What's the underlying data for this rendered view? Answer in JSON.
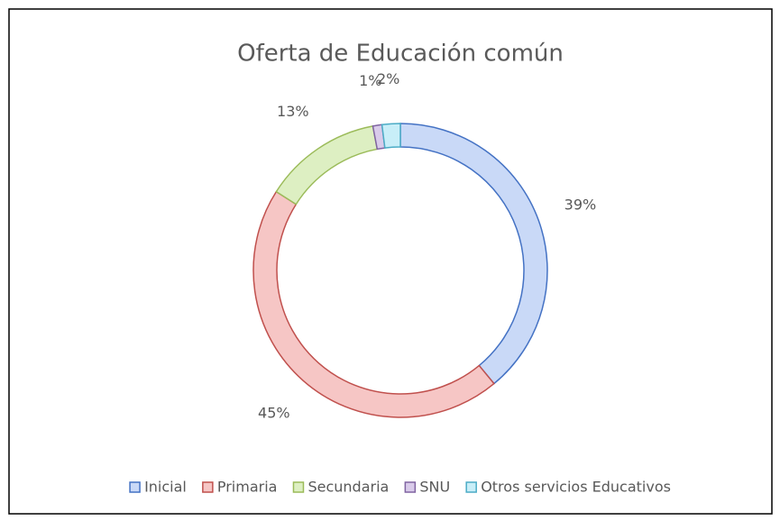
{
  "chart_data": {
    "type": "donut",
    "title": "Oferta de Educación común",
    "categories": [
      "Inicial",
      "Primaria",
      "Secundaria",
      "SNU",
      "Otros servicios Educativos"
    ],
    "values": [
      39,
      45,
      13,
      1,
      2
    ],
    "value_labels": [
      "39%",
      "45%",
      "13%",
      "1%",
      "2%"
    ],
    "colors": [
      "#c9d9f7",
      "#f6c6c5",
      "#ddefc2",
      "#d9cbea",
      "#c8eef8"
    ],
    "edge_colors": [
      "#4472c4",
      "#c0504d",
      "#9bbb59",
      "#8064a2",
      "#4bacc6"
    ],
    "legend": "bottom"
  }
}
